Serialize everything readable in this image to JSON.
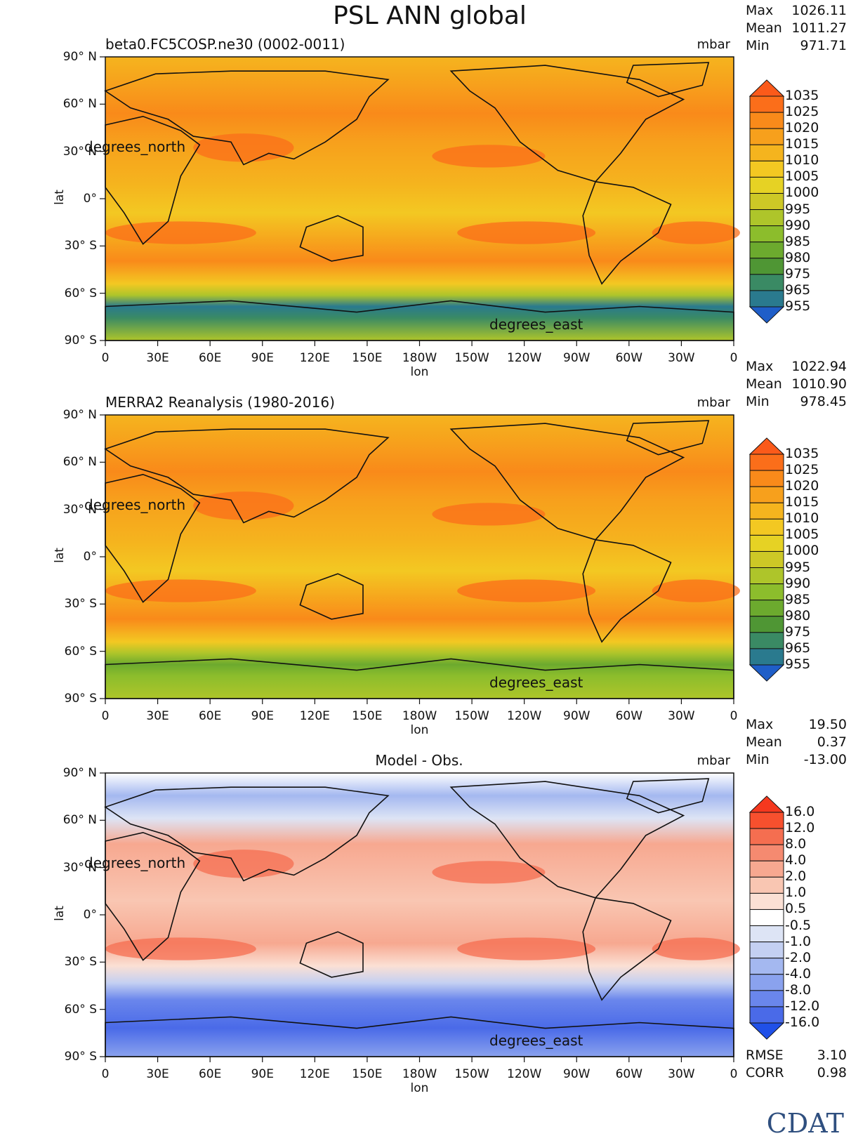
{
  "title": "PSL ANN global",
  "logo_text": "CDAT",
  "panels": [
    {
      "subtitle": "beta0.FC5COSP.ne30 (0002-0011)",
      "units": "mbar",
      "stats": [
        {
          "label": "Max",
          "value": "1026.11"
        },
        {
          "label": "Mean",
          "value": "1011.27"
        },
        {
          "label": "Min",
          "value": "971.71"
        }
      ],
      "colorbar_labels": [
        "1035",
        "1025",
        "1020",
        "1015",
        "1010",
        "1005",
        "1000",
        "995",
        "990",
        "985",
        "980",
        "975",
        "965",
        "955"
      ],
      "colors": [
        "#fb5a1a",
        "#fb6e1a",
        "#f98a1a",
        "#f7a01c",
        "#f5b41e",
        "#f3c822",
        "#e6d224",
        "#cdc826",
        "#aec52a",
        "#8cbd2c",
        "#6caa2e",
        "#4f9634",
        "#3a8a64",
        "#2a7a8e",
        "#1f6aa8",
        "#1f5ec8"
      ],
      "x_axis_label": "lon",
      "y_axis_label": "lat",
      "x_ticks": [
        "0",
        "30E",
        "60E",
        "90E",
        "120E",
        "150E",
        "180W",
        "150W",
        "120W",
        "90W",
        "60W",
        "30W",
        "0"
      ],
      "y_ticks": [
        "90° N",
        "60° N",
        "30° N",
        "0°",
        "30° S",
        "60° S",
        "90° S"
      ],
      "lat_units_label": "degrees_north",
      "lon_units_label": "degrees_east"
    },
    {
      "subtitle": "MERRA2 Reanalysis (1980-2016)",
      "units": "mbar",
      "stats": [
        {
          "label": "Max",
          "value": "1022.94"
        },
        {
          "label": "Mean",
          "value": "1010.90"
        },
        {
          "label": "Min",
          "value": "978.45"
        }
      ],
      "colorbar_labels": [
        "1035",
        "1025",
        "1020",
        "1015",
        "1010",
        "1005",
        "1000",
        "995",
        "990",
        "985",
        "980",
        "975",
        "965",
        "955"
      ],
      "colors": [
        "#fb5a1a",
        "#fb6e1a",
        "#f98a1a",
        "#f7a01c",
        "#f5b41e",
        "#f3c822",
        "#e6d224",
        "#cdc826",
        "#aec52a",
        "#8cbd2c",
        "#6caa2e",
        "#4f9634",
        "#3a8a64",
        "#2a7a8e",
        "#1f6aa8",
        "#1f5ec8"
      ],
      "x_axis_label": "lon",
      "y_axis_label": "lat",
      "x_ticks": [
        "0",
        "30E",
        "60E",
        "90E",
        "120E",
        "150E",
        "180W",
        "150W",
        "120W",
        "90W",
        "60W",
        "30W",
        "0"
      ],
      "y_ticks": [
        "90° N",
        "60° N",
        "30° N",
        "0°",
        "30° S",
        "60° S",
        "90° S"
      ],
      "lat_units_label": "degrees_north",
      "lon_units_label": "degrees_east"
    },
    {
      "subtitle": "Model - Obs.",
      "units": "mbar",
      "stats": [
        {
          "label": "Max",
          "value": "19.50"
        },
        {
          "label": "Mean",
          "value": "0.37"
        },
        {
          "label": "Min",
          "value": "-13.00"
        }
      ],
      "extra_stats": [
        {
          "label": "RMSE",
          "value": "3.10"
        },
        {
          "label": "CORR",
          "value": "0.98"
        }
      ],
      "colorbar_labels": [
        "16.0",
        "12.0",
        "8.0",
        "4.0",
        "2.0",
        "1.0",
        "0.5",
        "-0.5",
        "-1.0",
        "-2.0",
        "-4.0",
        "-8.0",
        "-12.0",
        "-16.0"
      ],
      "colors": [
        "#f5381e",
        "#f7502e",
        "#f56e50",
        "#f58a70",
        "#f7a890",
        "#f9c6b2",
        "#fbe0d4",
        "#ffffff",
        "#dde4f5",
        "#c4d0f2",
        "#a4b8f0",
        "#8aa2ee",
        "#6a86ec",
        "#4a6ae8",
        "#2f54e2",
        "#2050e8"
      ],
      "x_axis_label": "lon",
      "y_axis_label": "lat",
      "x_ticks": [
        "0",
        "30E",
        "60E",
        "90E",
        "120E",
        "150E",
        "180W",
        "150W",
        "120W",
        "90W",
        "60W",
        "30W",
        "0"
      ],
      "y_ticks": [
        "90° N",
        "60° N",
        "30° N",
        "0°",
        "30° S",
        "60° S",
        "90° S"
      ],
      "lat_units_label": "degrees_north",
      "lon_units_label": "degrees_east"
    }
  ]
}
